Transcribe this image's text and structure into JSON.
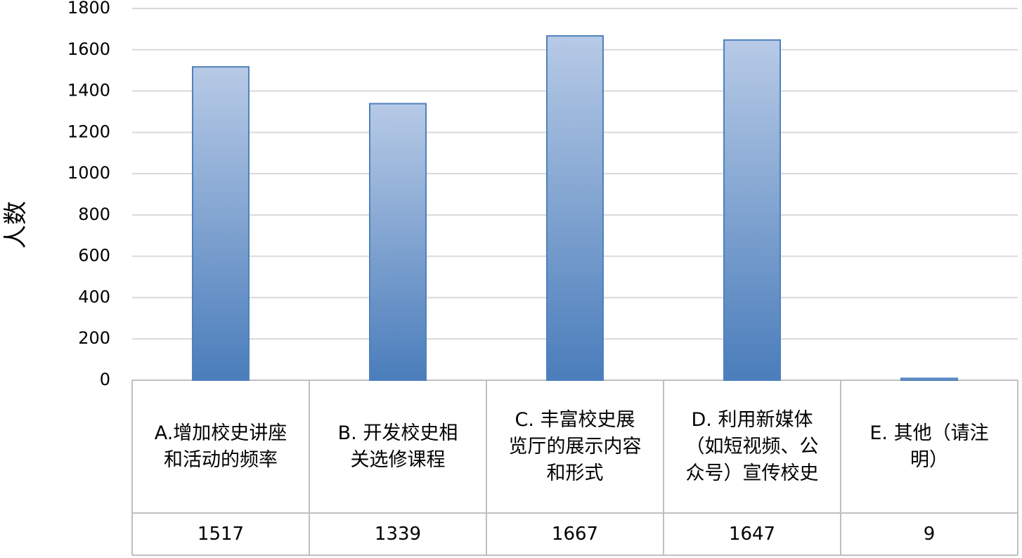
{
  "chart_data": {
    "type": "bar",
    "y_label": "人数",
    "categories": [
      "A.增加校史讲座和活动的频率",
      "B. 开发校史相关选修课程",
      "C. 丰富校史展览厅的展示内容和形式",
      "D. 利用新媒体（如短视频、公众号）宣传校史",
      "E. 其他（请注明）"
    ],
    "values": [
      1517,
      1339,
      1667,
      1647,
      9
    ],
    "color": "#4f81bd",
    "ylim": [
      0,
      1800
    ],
    "yticks": [
      0,
      200,
      400,
      600,
      800,
      1000,
      1200,
      1400,
      1600,
      1800
    ],
    "grid": true,
    "data_table": true
  }
}
